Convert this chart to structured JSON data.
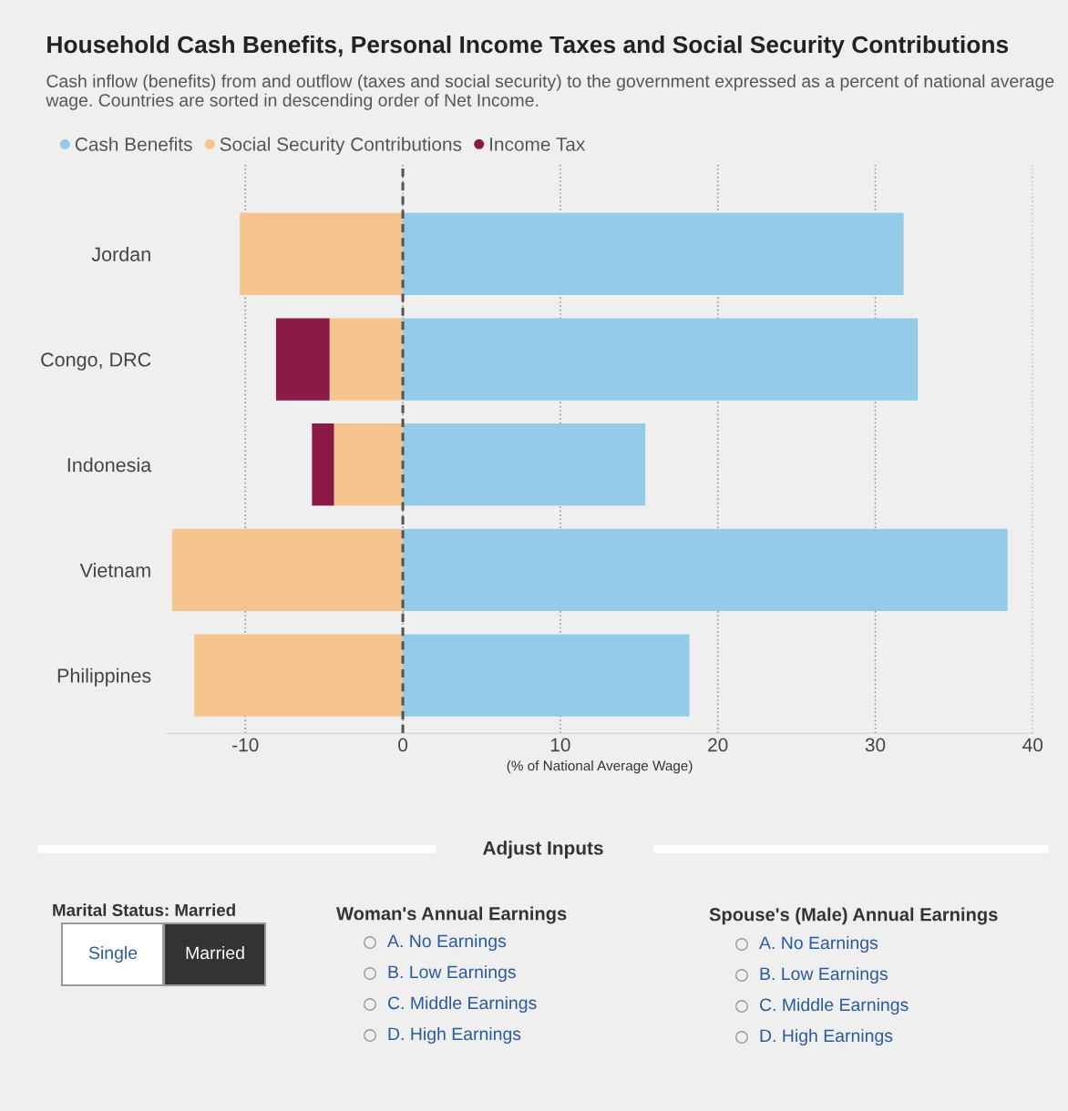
{
  "chart_data": [
    {
      "type": "bar",
      "orientation": "horizontal",
      "stacked": true,
      "title": "Household Cash Benefits, Personal Income Taxes and Social Security Contributions",
      "subtitle": "Cash inflow (benefits) from and outflow (taxes and social security) to the government expressed as a percent of national average wage. Countries are sorted in descending order of Net Income.",
      "xlabel": "(% of National Average Wage)",
      "categories": [
        "Jordan",
        "Congo, DRC",
        "Indonesia",
        "Vietnam",
        "Philippines"
      ],
      "series": [
        {
          "name": "Cash Benefits",
          "color": "#93cbe8",
          "values": [
            31.8,
            32.7,
            15.4,
            38.4,
            18.2
          ]
        },
        {
          "name": "Social Security Contributions",
          "color": "#f5c48f",
          "values": [
            -10.35,
            -4.65,
            -4.37,
            -14.65,
            -13.25
          ]
        },
        {
          "name": "Income Tax",
          "color": "#8c1a46",
          "values": [
            0,
            -3.4,
            -1.4,
            0,
            0
          ]
        }
      ],
      "xlim": [
        -15,
        40
      ],
      "xticks": [
        -10,
        0,
        10,
        20,
        30,
        40
      ],
      "grid": "x",
      "legend": "top left",
      "ref_lines": [
        {
          "axis": "x",
          "value": 0,
          "color": "#555555",
          "line_style": "dashed"
        }
      ]
    },
    {
      "type": "other",
      "title": "Adjust Inputs",
      "annotations": [
        "Marital Status: Married",
        "Single",
        "Married",
        "Woman's Annual Earnings",
        "A. No Earnings",
        "B. Low Earnings",
        "C. Middle Earnings",
        "D. High Earnings",
        "Spouse's (Male) Annual Earnings",
        "A. No Earnings",
        "B. Low Earnings",
        "C. Middle Earnings",
        "D. High Earnings"
      ]
    }
  ]
}
